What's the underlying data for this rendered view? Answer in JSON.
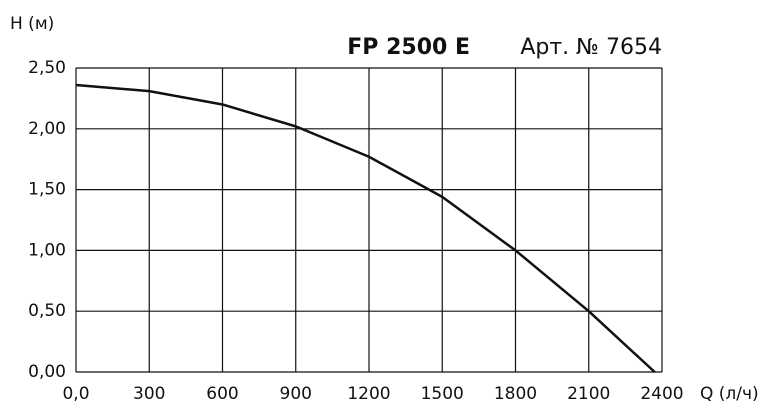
{
  "chart_data": {
    "type": "line",
    "title": "FP 2500 E",
    "subtitle": "Арт. № 7654",
    "y_label": "H (м)",
    "x_label": "Q (л/ч)",
    "x": [
      0,
      300,
      600,
      900,
      1200,
      1500,
      1800,
      2100,
      2370
    ],
    "series": [
      {
        "name": "FP 2500 E",
        "color": "#111111",
        "values": [
          2.36,
          2.31,
          2.2,
          2.02,
          1.77,
          1.44,
          1.0,
          0.5,
          0
        ]
      }
    ],
    "xlim": [
      0,
      2400
    ],
    "xticks": [
      {
        "value": 0,
        "label": "0,0"
      },
      300,
      600,
      900,
      1200,
      1500,
      1800,
      2100,
      2400
    ],
    "ylim": [
      0,
      2.5
    ],
    "yticks": [
      {
        "value": 0,
        "label": "0,00"
      },
      {
        "value": 0.5,
        "label": "0,50"
      },
      {
        "value": 1,
        "label": "1,00"
      },
      {
        "value": 1.5,
        "label": "1,50"
      },
      {
        "value": 2,
        "label": "2,00"
      },
      {
        "value": 2.5,
        "label": "2,50"
      }
    ],
    "grid": true,
    "legend": false
  }
}
